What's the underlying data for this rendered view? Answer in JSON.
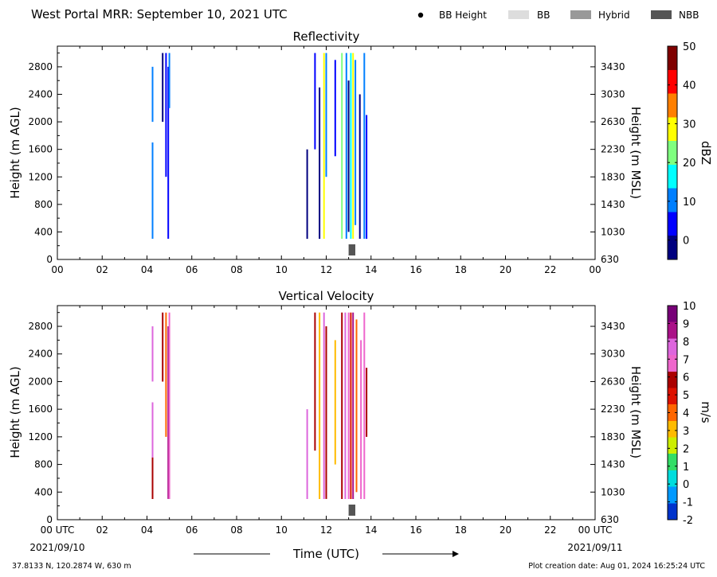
{
  "header": {
    "title": "West Portal MRR:  September 10, 2021 UTC",
    "legend": [
      {
        "label": "BB Height",
        "symbol": "dot",
        "color": "#000000"
      },
      {
        "label": "BB",
        "symbol": "rect",
        "color": "#dddddd"
      },
      {
        "label": "Hybrid",
        "symbol": "rect",
        "color": "#999999"
      },
      {
        "label": "NBB",
        "symbol": "rect",
        "color": "#555555"
      }
    ]
  },
  "footer": {
    "location": "37.8133 N, 120.2874 W, 630 m",
    "created": "Plot creation date: Aug 01, 2024 16:25:24 UTC",
    "xlabel": "Time (UTC)",
    "start_date": "2021/09/10",
    "end_date": "2021/09/11"
  },
  "chart_data": [
    {
      "type": "heatmap",
      "title": "Reflectivity",
      "ylabel": "Height (m AGL)",
      "ylabel_right": "Height (m MSL)",
      "colorbar_label": "dBZ",
      "xlim": [
        0,
        24
      ],
      "ylim": [
        0,
        3100
      ],
      "xticks": [
        "00",
        "02",
        "04",
        "06",
        "08",
        "10",
        "12",
        "14",
        "16",
        "18",
        "20",
        "22",
        "00"
      ],
      "yticks": [
        0,
        400,
        800,
        1200,
        1600,
        2000,
        2400,
        2800
      ],
      "yticks_right": [
        630,
        1030,
        1430,
        1830,
        2230,
        2630,
        3030,
        3430
      ],
      "clim": [
        -5,
        50
      ],
      "colorbar_ticks": [
        0,
        10,
        20,
        30,
        40,
        50
      ],
      "colormap": [
        "#00007f",
        "#0000ff",
        "#007fff",
        "#00ffff",
        "#7fff7f",
        "#ffff00",
        "#ff7f00",
        "#ff0000",
        "#7f0000"
      ],
      "bright_band": [
        {
          "start": 13.0,
          "end": 13.3,
          "type": "NBB"
        }
      ],
      "streaks": [
        {
          "x": 4.25,
          "h0": 300,
          "h1": 1700,
          "v": 10
        },
        {
          "x": 4.25,
          "h0": 2000,
          "h1": 2800,
          "v": 12
        },
        {
          "x": 4.7,
          "h0": 2000,
          "h1": 3000,
          "v": -2
        },
        {
          "x": 4.85,
          "h0": 1200,
          "h1": 3000,
          "v": 3
        },
        {
          "x": 4.95,
          "h0": 300,
          "h1": 2800,
          "v": 5
        },
        {
          "x": 5.0,
          "h0": 2200,
          "h1": 3000,
          "v": 9
        },
        {
          "x": 11.15,
          "h0": 300,
          "h1": 1600,
          "v": -2
        },
        {
          "x": 11.5,
          "h0": 1600,
          "h1": 3000,
          "v": 3
        },
        {
          "x": 11.7,
          "h0": 300,
          "h1": 2500,
          "v": 1
        },
        {
          "x": 11.9,
          "h0": 300,
          "h1": 3000,
          "v": 28
        },
        {
          "x": 12.0,
          "h0": 1200,
          "h1": 3000,
          "v": 12
        },
        {
          "x": 12.4,
          "h0": 1500,
          "h1": 2900,
          "v": 2
        },
        {
          "x": 12.7,
          "h0": 300,
          "h1": 3000,
          "v": 25
        },
        {
          "x": 12.9,
          "h0": 300,
          "h1": 3000,
          "v": 8
        },
        {
          "x": 13.0,
          "h0": 400,
          "h1": 2600,
          "v": 1
        },
        {
          "x": 13.1,
          "h0": 300,
          "h1": 3000,
          "v": 18
        },
        {
          "x": 13.2,
          "h0": 300,
          "h1": 3000,
          "v": 30
        },
        {
          "x": 13.3,
          "h0": 500,
          "h1": 2900,
          "v": 10
        },
        {
          "x": 13.5,
          "h0": 300,
          "h1": 2400,
          "v": -1
        },
        {
          "x": 13.7,
          "h0": 300,
          "h1": 3000,
          "v": 13
        },
        {
          "x": 13.8,
          "h0": 300,
          "h1": 2100,
          "v": 2
        }
      ]
    },
    {
      "type": "heatmap",
      "title": "Vertical Velocity",
      "ylabel": "Height (m AGL)",
      "ylabel_right": "Height (m MSL)",
      "colorbar_label": "m/s",
      "xlim": [
        0,
        24
      ],
      "ylim": [
        0,
        3100
      ],
      "xticks": [
        "00 UTC",
        "02",
        "04",
        "06",
        "08",
        "10",
        "12",
        "14",
        "16",
        "18",
        "20",
        "22",
        "00 UTC"
      ],
      "yticks": [
        0,
        400,
        800,
        1200,
        1600,
        2000,
        2400,
        2800
      ],
      "yticks_right": [
        630,
        1030,
        1430,
        1830,
        2230,
        2630,
        3030,
        3430
      ],
      "clim": [
        -2,
        10
      ],
      "colorbar_ticks": [
        -2,
        -1,
        0,
        1,
        2,
        3,
        4,
        5,
        6,
        7,
        8,
        9,
        10
      ],
      "colormap": [
        "#0033cc",
        "#0099ff",
        "#00dddd",
        "#33dd66",
        "#ccee00",
        "#ffbb00",
        "#ff6600",
        "#dd1100",
        "#aa0000",
        "#ee66cc",
        "#dd66dd",
        "#aa1188",
        "#770077"
      ],
      "bright_band": [
        {
          "start": 13.0,
          "end": 13.3,
          "type": "NBB"
        }
      ],
      "streaks": [
        {
          "x": 4.25,
          "h0": 300,
          "h1": 1700,
          "v": 7.5
        },
        {
          "x": 4.25,
          "h0": 300,
          "h1": 900,
          "v": 6.2
        },
        {
          "x": 4.25,
          "h0": 2000,
          "h1": 2800,
          "v": 7.5
        },
        {
          "x": 4.7,
          "h0": 2000,
          "h1": 3000,
          "v": 5.5
        },
        {
          "x": 4.85,
          "h0": 1200,
          "h1": 3000,
          "v": 3.6
        },
        {
          "x": 4.95,
          "h0": 300,
          "h1": 2800,
          "v": 8.2
        },
        {
          "x": 5.0,
          "h0": 300,
          "h1": 3000,
          "v": 6.5
        },
        {
          "x": 11.15,
          "h0": 300,
          "h1": 1600,
          "v": 7.8
        },
        {
          "x": 11.5,
          "h0": 1000,
          "h1": 3000,
          "v": 6.2
        },
        {
          "x": 11.7,
          "h0": 300,
          "h1": 3000,
          "v": 3.5
        },
        {
          "x": 11.9,
          "h0": 300,
          "h1": 3000,
          "v": 7.5
        },
        {
          "x": 12.0,
          "h0": 300,
          "h1": 2800,
          "v": 5.5
        },
        {
          "x": 12.4,
          "h0": 800,
          "h1": 2600,
          "v": 3.0
        },
        {
          "x": 12.7,
          "h0": 300,
          "h1": 3000,
          "v": 6.2
        },
        {
          "x": 12.85,
          "h0": 300,
          "h1": 3000,
          "v": 7.8
        },
        {
          "x": 13.0,
          "h0": 300,
          "h1": 3000,
          "v": 6.8
        },
        {
          "x": 13.1,
          "h0": 300,
          "h1": 3000,
          "v": 5.2
        },
        {
          "x": 13.2,
          "h0": 300,
          "h1": 3000,
          "v": 8.2
        },
        {
          "x": 13.35,
          "h0": 400,
          "h1": 2900,
          "v": 3.8
        },
        {
          "x": 13.55,
          "h0": 300,
          "h1": 2600,
          "v": 7.2
        },
        {
          "x": 13.7,
          "h0": 300,
          "h1": 3000,
          "v": 6.5
        },
        {
          "x": 13.8,
          "h0": 1200,
          "h1": 2200,
          "v": 6.0
        }
      ]
    }
  ]
}
